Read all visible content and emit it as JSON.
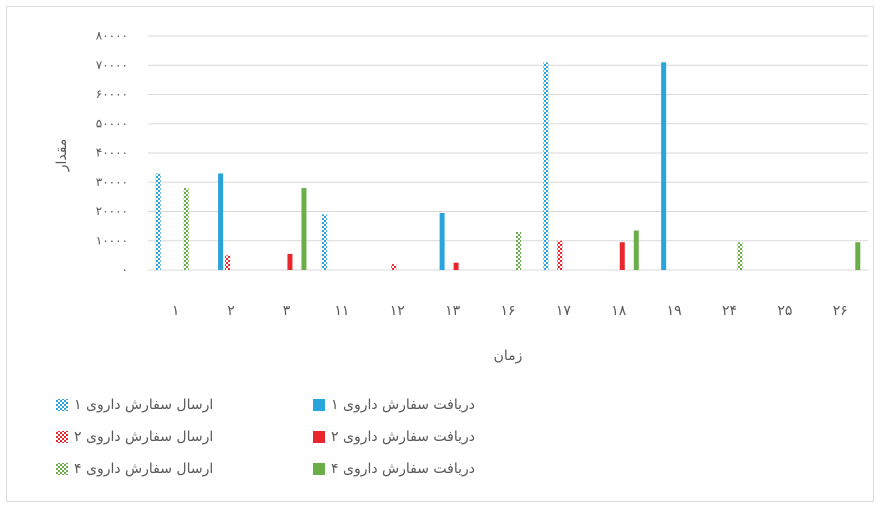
{
  "chart_data": {
    "type": "bar",
    "x_label": "زمان",
    "y_label": "مقدار",
    "categories": [
      "۱",
      "۲",
      "۳",
      "۱۱",
      "۱۲",
      "۱۳",
      "۱۶",
      "۱۷",
      "۱۸",
      "۱۹",
      "۲۴",
      "۲۵",
      "۲۶"
    ],
    "series": [
      {
        "name": "ارسال سفارش داروی ۱",
        "color": "#2aa4dc",
        "hatch": true,
        "values": [
          33000,
          null,
          null,
          19000,
          null,
          null,
          null,
          71000,
          null,
          null,
          null,
          null,
          null
        ]
      },
      {
        "name": "دریافت سفارش داروی ۱",
        "color": "#2aa4dc",
        "hatch": false,
        "values": [
          null,
          33000,
          null,
          null,
          null,
          19500,
          null,
          null,
          null,
          71000,
          null,
          null,
          null
        ]
      },
      {
        "name": "ارسال سفارش داروی ۲",
        "color": "#e8262b",
        "hatch": true,
        "values": [
          null,
          5000,
          null,
          null,
          2000,
          null,
          null,
          10000,
          null,
          null,
          null,
          null,
          null
        ]
      },
      {
        "name": "دریافت سفارش داروی ۲",
        "color": "#e8262b",
        "hatch": false,
        "values": [
          null,
          null,
          5500,
          null,
          null,
          2500,
          null,
          null,
          9500,
          null,
          null,
          null,
          null
        ]
      },
      {
        "name": "ارسال سفارش داروی ۴",
        "color": "#6aae4a",
        "hatch": true,
        "values": [
          28000,
          null,
          null,
          null,
          null,
          null,
          13000,
          null,
          null,
          null,
          9500,
          null,
          null
        ]
      },
      {
        "name": "دریافت سفارش داروی ۴",
        "color": "#6aae4a",
        "hatch": false,
        "values": [
          null,
          null,
          28000,
          null,
          null,
          null,
          null,
          null,
          13500,
          null,
          null,
          null,
          9500
        ]
      }
    ],
    "ylim": [
      0,
      80000
    ],
    "yticks": [
      {
        "value": 0,
        "label": "۰"
      },
      {
        "value": 10000,
        "label": "۱۰۰۰۰"
      },
      {
        "value": 20000,
        "label": "۲۰۰۰۰"
      },
      {
        "value": 30000,
        "label": "۳۰۰۰۰"
      },
      {
        "value": 40000,
        "label": "۴۰۰۰۰"
      },
      {
        "value": 50000,
        "label": "۵۰۰۰۰"
      },
      {
        "value": 60000,
        "label": "۶۰۰۰۰"
      },
      {
        "value": 70000,
        "label": "۷۰۰۰۰"
      },
      {
        "value": 80000,
        "label": "۸۰۰۰۰"
      }
    ],
    "grid": true
  }
}
